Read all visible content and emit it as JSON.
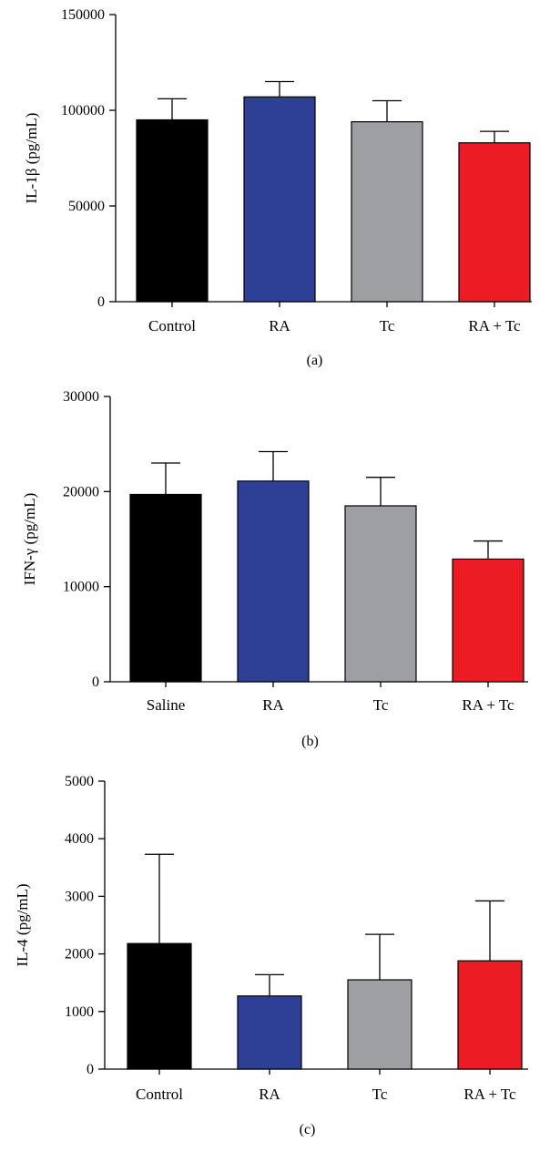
{
  "chart_data": [
    {
      "type": "bar",
      "panel_label": "(a)",
      "categories": [
        "Control",
        "RA",
        "Tc",
        "RA + Tc"
      ],
      "values": [
        95000,
        107000,
        94000,
        83000
      ],
      "errors": [
        11000,
        8000,
        11000,
        6000
      ],
      "colors": [
        "#000000",
        "#2e3f96",
        "#9d9fa2",
        "#ec1c24"
      ],
      "ylabel": "IL-1β (pg/mL)",
      "ylim": [
        0,
        150000
      ],
      "yticks": [
        0,
        50000,
        100000,
        150000
      ],
      "ytick_labels": [
        "0",
        "50000",
        "100000",
        "150000"
      ]
    },
    {
      "type": "bar",
      "panel_label": "(b)",
      "categories": [
        "Saline",
        "RA",
        "Tc",
        "RA + Tc"
      ],
      "values": [
        19700,
        21100,
        18500,
        12900
      ],
      "errors": [
        3300,
        3100,
        3000,
        1900
      ],
      "colors": [
        "#000000",
        "#2e3f96",
        "#9d9fa2",
        "#ec1c24"
      ],
      "ylabel": "IFN-γ (pg/mL)",
      "ylim": [
        0,
        30000
      ],
      "yticks": [
        0,
        10000,
        20000,
        30000
      ],
      "ytick_labels": [
        "0",
        "10000",
        "20000",
        "30000"
      ]
    },
    {
      "type": "bar",
      "panel_label": "(c)",
      "categories": [
        "Control",
        "RA",
        "Tc",
        "RA + Tc"
      ],
      "values": [
        2180,
        1270,
        1550,
        1880
      ],
      "errors": [
        1550,
        370,
        790,
        1040
      ],
      "colors": [
        "#000000",
        "#2e3f96",
        "#9d9fa2",
        "#ec1c24"
      ],
      "ylabel": "IL-4 (pg/mL)",
      "ylim": [
        0,
        5000
      ],
      "yticks": [
        0,
        1000,
        2000,
        3000,
        4000,
        5000
      ],
      "ytick_labels": [
        "0",
        "1000",
        "2000",
        "3000",
        "4000",
        "5000"
      ]
    }
  ]
}
